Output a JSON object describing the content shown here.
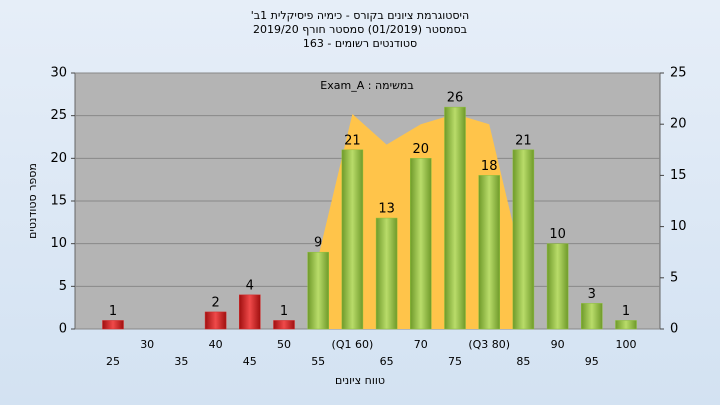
{
  "chart_data": {
    "type": "bar",
    "title": "היסטוגרמת ציונים בקורס - כימיה פיסיקלית 1ב'",
    "subtitle": "בסמסטר (01/2019) סמסטר חורף 2019/20",
    "subtitle2": "סטודנטים רשומים - 163",
    "annotation": "במשימה : Exam_A",
    "x_label": "טווח ציונים",
    "y_label": "מספר סטודנטים",
    "categories": [
      "25",
      "30",
      "35",
      "40",
      "45",
      "50",
      "55",
      "(Q1 60)",
      "65",
      "70",
      "75",
      "(Q3 80)",
      "85",
      "90",
      "95",
      "100"
    ],
    "values": [
      1,
      0,
      0,
      2,
      4,
      1,
      9,
      21,
      13,
      20,
      26,
      18,
      21,
      10,
      3,
      1
    ],
    "colors": [
      "#d42a2a",
      "#d42a2a",
      "#d42a2a",
      "#d42a2a",
      "#d42a2a",
      "#d42a2a",
      "#8cbf3a",
      "#8cbf3a",
      "#8cbf3a",
      "#8cbf3a",
      "#8cbf3a",
      "#8cbf3a",
      "#8cbf3a",
      "#8cbf3a",
      "#8cbf3a",
      "#8cbf3a"
    ],
    "area": {
      "axis": "y2",
      "color": "#ffc44a",
      "values": [
        null,
        null,
        null,
        null,
        null,
        null,
        7,
        21,
        18,
        20,
        21,
        20,
        6,
        null,
        null,
        null
      ]
    },
    "ylim": [
      0,
      30
    ],
    "yticks": [
      0,
      5,
      10,
      15,
      20,
      25,
      30
    ],
    "y2lim": [
      0,
      25
    ],
    "y2ticks": [
      0,
      5,
      10,
      15,
      20,
      25
    ],
    "grid": true
  }
}
